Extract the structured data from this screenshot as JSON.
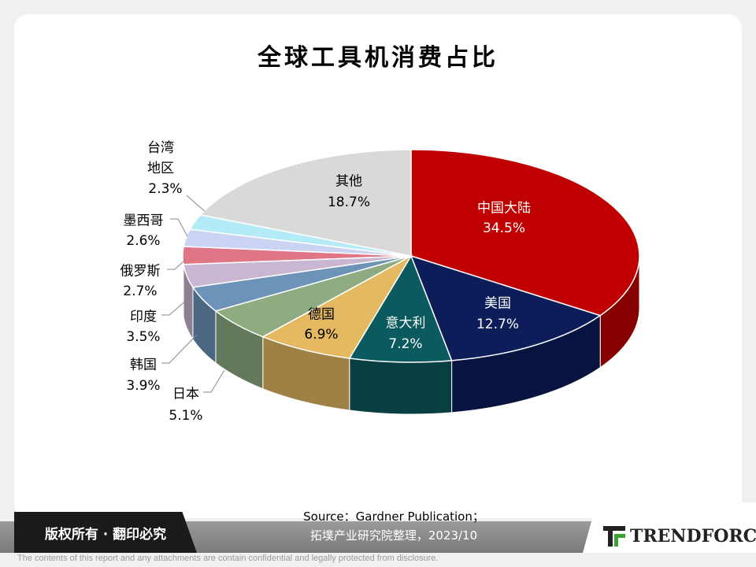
{
  "chart_data": {
    "type": "pie",
    "title": "全球工具机消费占比",
    "categories": [
      "中国大陆",
      "美国",
      "意大利",
      "德国",
      "日本",
      "韩国",
      "印度",
      "俄罗斯",
      "墨西哥",
      "台湾地区",
      "其他"
    ],
    "values": [
      34.5,
      12.7,
      7.2,
      6.9,
      5.1,
      3.9,
      3.5,
      2.7,
      2.6,
      2.3,
      18.7
    ],
    "value_labels": [
      "34.5%",
      "12.7%",
      "7.2%",
      "6.9%",
      "5.1%",
      "3.9%",
      "3.5%",
      "2.7%",
      "2.6%",
      "2.3%",
      "18.7%"
    ],
    "colors": [
      "#c00000",
      "#0c1d5a",
      "#0b5a5f",
      "#e5b862",
      "#8fab82",
      "#6d93b8",
      "#c9b6d3",
      "#e07585",
      "#cbd3f2",
      "#b3ebf7",
      "#d9d9d9"
    ],
    "source": [
      "Source：Gardner Publication；",
      "拓墣产业研究院整理，2023/10"
    ]
  },
  "footer": {
    "rights": "版权所有 · 翻印必究",
    "logo": "TRENDFORCE",
    "disclaimer": "The contents of this report and any attachments are contain confidential and legally protected from disclosure."
  }
}
